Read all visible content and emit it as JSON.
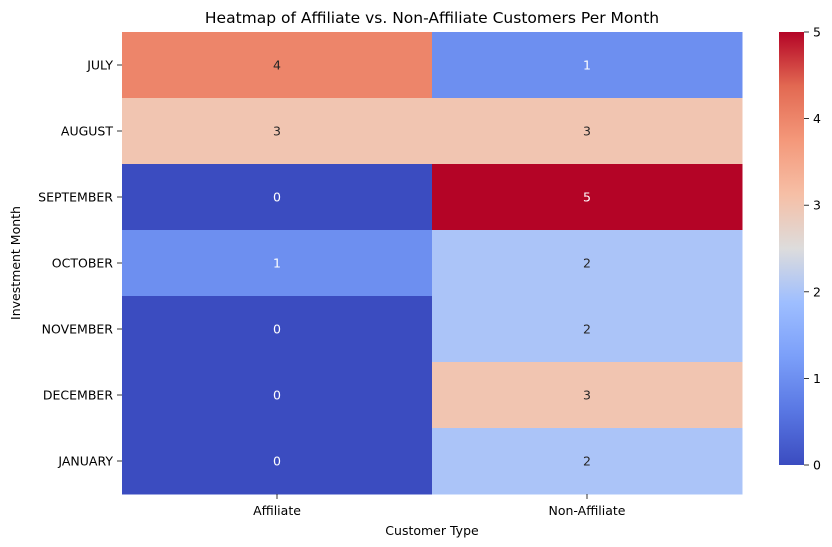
{
  "chart_data": {
    "type": "heatmap",
    "title": "Heatmap of Affiliate vs. Non-Affiliate Customers Per Month",
    "xlabel": "Customer Type",
    "ylabel": "Investment Month",
    "x_categories": [
      "Affiliate",
      "Non-Affiliate"
    ],
    "y_categories": [
      "JULY",
      "AUGUST",
      "SEPTEMBER",
      "OCTOBER",
      "NOVEMBER",
      "DECEMBER",
      "JANUARY"
    ],
    "values": [
      [
        4,
        1
      ],
      [
        3,
        3
      ],
      [
        0,
        5
      ],
      [
        1,
        2
      ],
      [
        0,
        2
      ],
      [
        0,
        3
      ],
      [
        0,
        2
      ]
    ],
    "colormap": "coolwarm",
    "colorbar": {
      "min": 0,
      "max": 5,
      "ticks": [
        "0",
        "1",
        "2",
        "3",
        "4",
        "5"
      ]
    },
    "annotations": true
  }
}
